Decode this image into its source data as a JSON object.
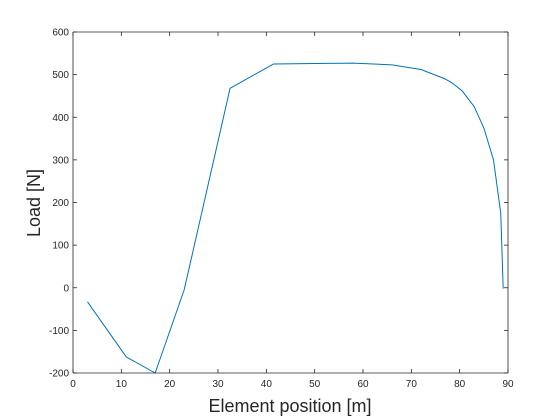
{
  "chart_data": {
    "type": "line",
    "title": "",
    "xlabel": "Element position [m]",
    "ylabel": "Load [N]",
    "xlim": [
      0,
      90
    ],
    "ylim": [
      -200,
      600
    ],
    "x_ticks": [
      0,
      10,
      20,
      30,
      40,
      50,
      60,
      70,
      80,
      90
    ],
    "y_ticks": [
      -200,
      -100,
      0,
      100,
      200,
      300,
      400,
      500,
      600
    ],
    "grid": false,
    "legend": "none",
    "series": [
      {
        "color": "#0072BD",
        "x": [
          3,
          11,
          17,
          23,
          32.5,
          41.5,
          50,
          58,
          66,
          72,
          77,
          78.5,
          80.5,
          83,
          85,
          87,
          88.5,
          89
        ],
        "y": [
          -33,
          -162,
          -200,
          -5,
          468,
          525,
          526,
          527,
          523,
          512,
          490,
          480,
          462,
          425,
          375,
          300,
          175,
          -2
        ]
      }
    ]
  }
}
